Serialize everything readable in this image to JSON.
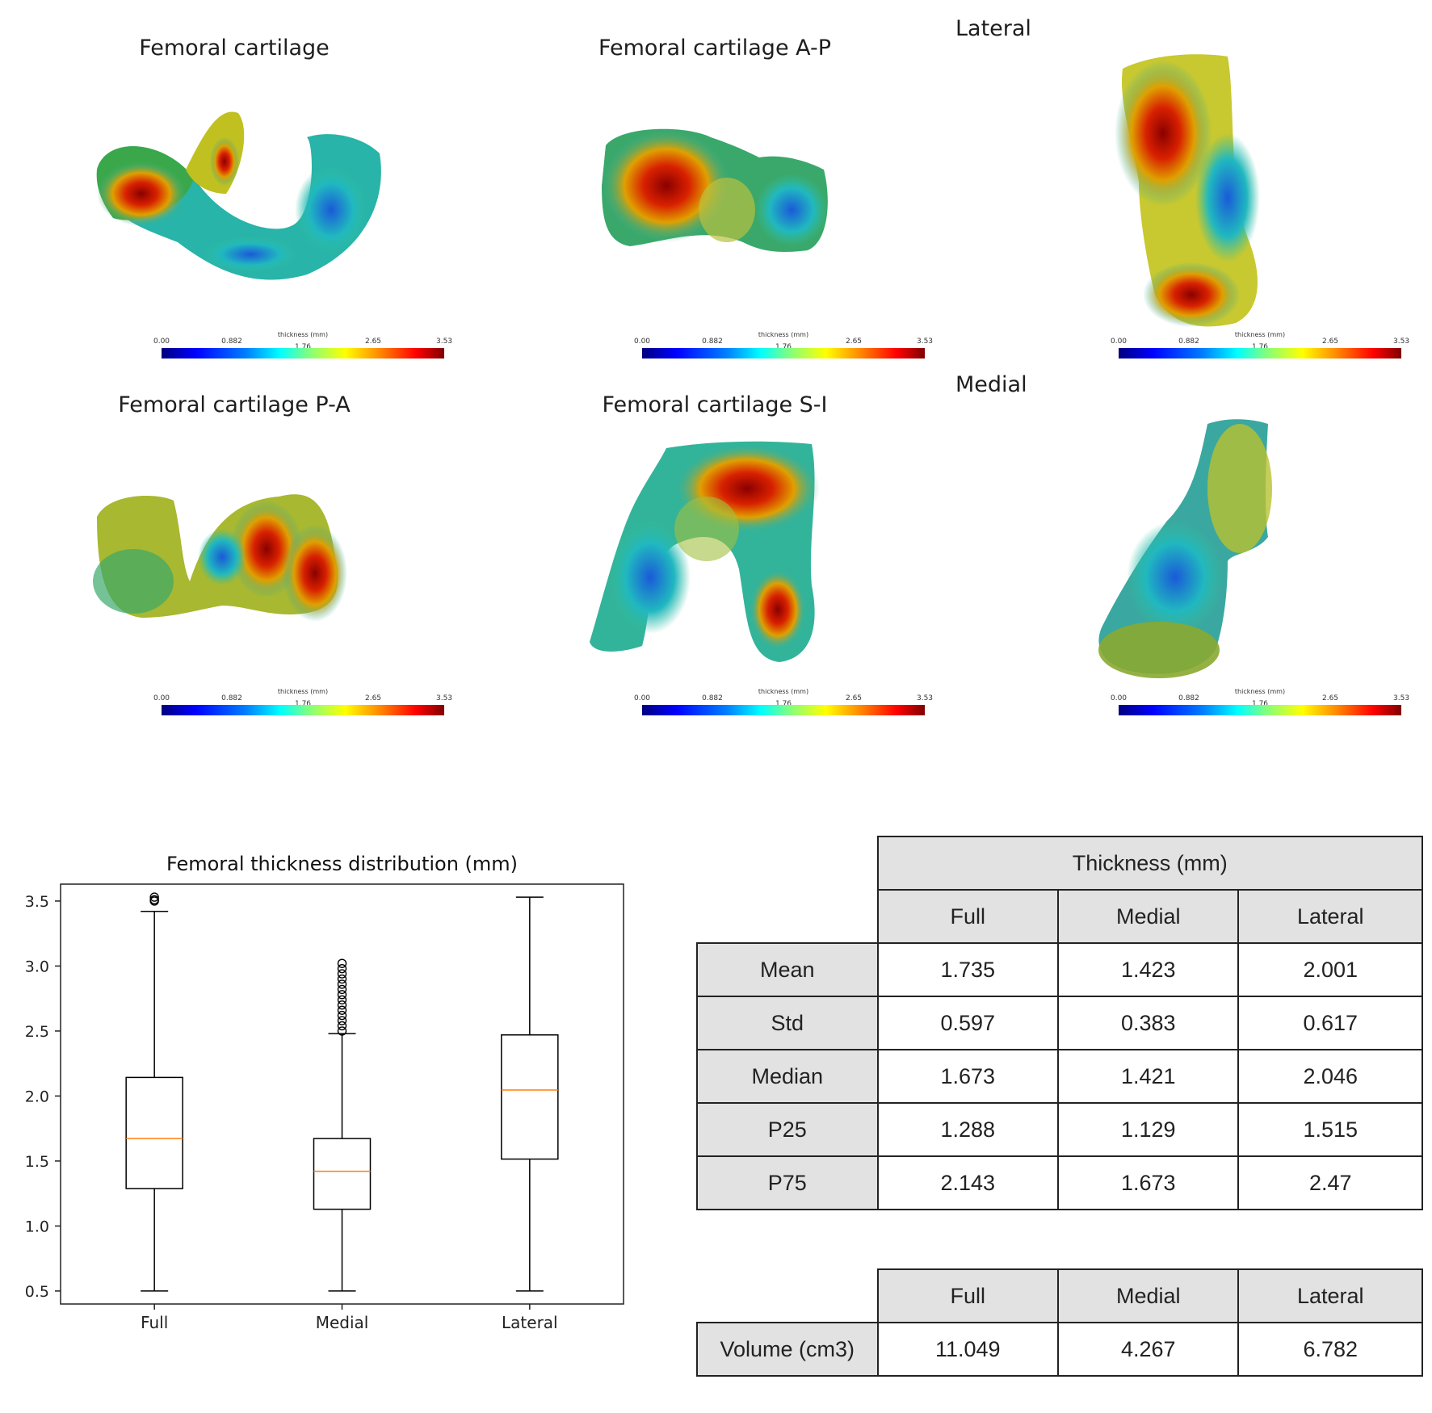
{
  "views": [
    {
      "title": "Femoral cartilage"
    },
    {
      "title": "Femoral cartilage A-P"
    },
    {
      "title": "Femoral cartilage P-A"
    },
    {
      "title": "Femoral cartilage S-I"
    }
  ],
  "side_labels": {
    "lateral": "Lateral",
    "medial": "Medial"
  },
  "colorbar": {
    "title": "thickness (mm)",
    "ticks": [
      "0.00",
      "0.882",
      "1.76",
      "2.65",
      "3.53"
    ],
    "colormap": "jet"
  },
  "chart_data": {
    "type": "box",
    "title": "Femoral thickness distribution (mm)",
    "categories": [
      "Full",
      "Medial",
      "Lateral"
    ],
    "ylim": [
      0.4,
      3.63
    ],
    "yticks": [
      "0.5",
      "1.0",
      "1.5",
      "2.0",
      "2.5",
      "3.0",
      "3.5"
    ],
    "boxes": [
      {
        "label": "Full",
        "whisker_low": 0.5,
        "q1": 1.288,
        "median": 1.673,
        "q3": 2.143,
        "whisker_high": 3.42,
        "outliers": [
          3.5,
          3.51,
          3.53
        ]
      },
      {
        "label": "Medial",
        "whisker_low": 0.5,
        "q1": 1.129,
        "median": 1.421,
        "q3": 1.673,
        "whisker_high": 2.48,
        "outliers": [
          2.5,
          2.54,
          2.58,
          2.62,
          2.66,
          2.7,
          2.74,
          2.78,
          2.82,
          2.86,
          2.9,
          2.94,
          2.98,
          3.02
        ]
      },
      {
        "label": "Lateral",
        "whisker_low": 0.5,
        "q1": 1.515,
        "median": 2.046,
        "q3": 2.47,
        "whisker_high": 3.53,
        "outliers": []
      }
    ],
    "colors": {
      "median": "#ff7f0e",
      "box": "#000000"
    }
  },
  "thickness_table": {
    "group_header": "Thickness (mm)",
    "columns": [
      "Full",
      "Medial",
      "Lateral"
    ],
    "rows": [
      {
        "label": "Mean",
        "values": [
          "1.735",
          "1.423",
          "2.001"
        ]
      },
      {
        "label": "Std",
        "values": [
          "0.597",
          "0.383",
          "0.617"
        ]
      },
      {
        "label": "Median",
        "values": [
          "1.673",
          "1.421",
          "2.046"
        ]
      },
      {
        "label": "P25",
        "values": [
          "1.288",
          "1.129",
          "1.515"
        ]
      },
      {
        "label": "P75",
        "values": [
          "2.143",
          "1.673",
          "2.47"
        ]
      }
    ]
  },
  "volume_table": {
    "columns": [
      "Full",
      "Medial",
      "Lateral"
    ],
    "rows": [
      {
        "label": "Volume (cm3)",
        "values": [
          "11.049",
          "4.267",
          "6.782"
        ]
      }
    ]
  }
}
